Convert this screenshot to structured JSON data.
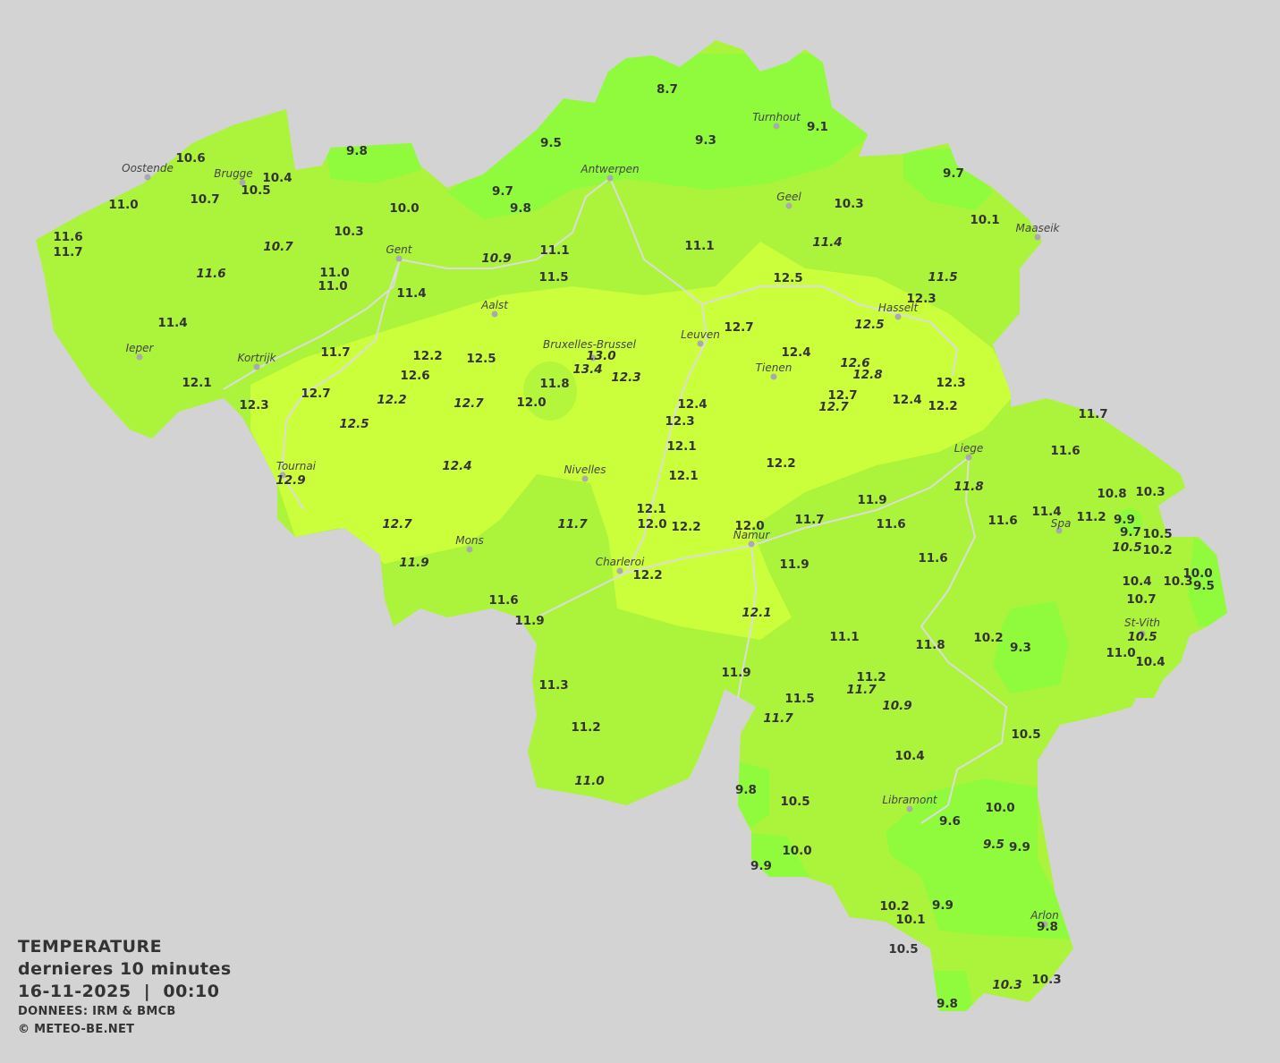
{
  "map": {
    "title": "TEMPERATURE",
    "subtitle": "dernieres 10 minutes",
    "datetime": "16-11-2025  |  00:10",
    "source": "DONNEES: IRM & BMCB",
    "copyright": "© METEO-BE.NET",
    "colors": {
      "background": "#d3d3d3",
      "zone_cold": "#8ffb3c",
      "zone_mild": "#acf33c",
      "zone_warm": "#ccff3b",
      "text": "#333333",
      "rivers": "#dcdcdc"
    },
    "cities": [
      "Oostende",
      "Brugge",
      "Antwerpen",
      "Turnhout",
      "Geel",
      "Maaseik",
      "Gent",
      "Aalst",
      "Hasselt",
      "Leuven",
      "Bruxelles-Brussel",
      "Ieper",
      "Kortrijk",
      "Tienen",
      "Liege",
      "Tournai",
      "Nivelles",
      "Spa",
      "Namur",
      "Mons",
      "Charleroi",
      "St-Vith",
      "Libramont",
      "Arlon"
    ],
    "readings": [
      "8.7",
      "9.3",
      "9.1",
      "9.5",
      "9.8",
      "10.6",
      "10.4",
      "10.5",
      "11.0",
      "10.7",
      "9.7",
      "9.8",
      "10.0",
      "10.3",
      "11.6",
      "11.7",
      "10.7",
      "11.6",
      "11.0",
      "11.0",
      "11.4",
      "10.9",
      "11.1",
      "11.5",
      "11.4",
      "11.7",
      "12.1",
      "12.3",
      "12.7",
      "12.2",
      "12.6",
      "12.2",
      "12.5",
      "12.7",
      "12.5",
      "13.0",
      "13.4",
      "12.3",
      "11.8",
      "12.0",
      "9.7",
      "10.3",
      "10.1",
      "11.1",
      "11.4",
      "11.5",
      "12.5",
      "12.3",
      "12.5",
      "12.7",
      "12.4",
      "12.6",
      "12.8",
      "12.7",
      "12.7",
      "12.4",
      "12.3",
      "12.2",
      "12.4",
      "12.3",
      "12.1",
      "12.1",
      "12.2",
      "12.4",
      "12.9",
      "12.1",
      "12.0",
      "12.2",
      "12.0",
      "11.7",
      "11.9",
      "11.6",
      "11.8",
      "11.7",
      "12.7",
      "11.9",
      "11.6",
      "11.9",
      "12.2",
      "11.9",
      "11.6",
      "12.1",
      "11.7",
      "11.6",
      "10.8",
      "10.3",
      "11.6",
      "11.4",
      "11.2",
      "9.9",
      "9.7",
      "10.5",
      "10.5",
      "10.2",
      "10.0",
      "9.5",
      "10.4",
      "10.3",
      "10.7",
      "10.5",
      "11.0",
      "10.4",
      "10.2",
      "9.3",
      "11.1",
      "11.8",
      "11.2",
      "11.7",
      "10.9",
      "11.5",
      "11.7",
      "11.9",
      "11.3",
      "11.2",
      "11.0",
      "10.5",
      "10.4",
      "9.8",
      "10.5",
      "10.0",
      "9.9",
      "9.6",
      "10.0",
      "9.5",
      "9.9",
      "9.9",
      "10.2",
      "10.1",
      "9.8",
      "10.5",
      "10.3",
      "10.3",
      "9.8"
    ],
    "italic_readings": [
      16,
      17,
      21,
      29,
      33,
      34,
      35,
      36,
      37,
      44,
      45,
      48,
      51,
      52,
      54,
      63,
      64,
      72,
      73,
      74,
      75,
      81,
      92,
      99,
      107,
      108,
      110,
      114,
      123,
      130
    ]
  }
}
